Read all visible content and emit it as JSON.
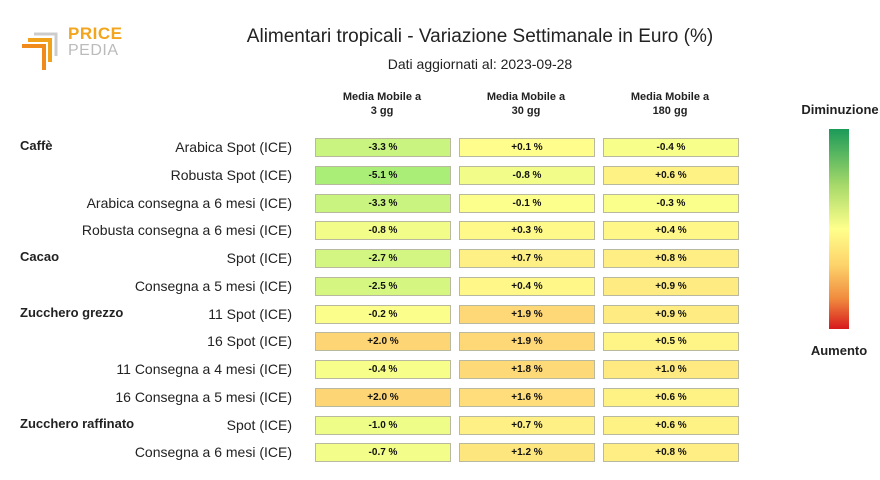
{
  "logo": {
    "price": "PRICE",
    "pedia": "PEDIA"
  },
  "chart_data": {
    "type": "table",
    "title": "Alimentari tropicali - Variazione Settimanale in Euro (%)",
    "subtitle": "Dati aggiornati al: 2023-09-28",
    "columns": [
      "Media Mobile a 3 gg",
      "Media Mobile a 30 gg",
      "Media Mobile a 180 gg"
    ],
    "column_lines": [
      [
        "Media Mobile a",
        "3 gg"
      ],
      [
        "Media Mobile a",
        "30 gg"
      ],
      [
        "Media Mobile a",
        "180 gg"
      ]
    ],
    "groups": [
      {
        "name": "Caffè",
        "rows": [
          {
            "label": "Arabica Spot (ICE)",
            "values": [
              -3.3,
              0.1,
              -0.4
            ],
            "display": [
              "-3.3 %",
              "+0.1 %",
              "-0.4 %"
            ]
          },
          {
            "label": "Robusta Spot (ICE)",
            "values": [
              -5.1,
              -0.8,
              0.6
            ],
            "display": [
              "-5.1 %",
              "-0.8 %",
              "+0.6 %"
            ]
          },
          {
            "label": "Arabica consegna a 6 mesi (ICE)",
            "values": [
              -3.3,
              -0.1,
              -0.3
            ],
            "display": [
              "-3.3 %",
              "-0.1 %",
              "-0.3 %"
            ]
          },
          {
            "label": "Robusta consegna a 6 mesi (ICE)",
            "values": [
              -0.8,
              0.3,
              0.4
            ],
            "display": [
              "-0.8 %",
              "+0.3 %",
              "+0.4 %"
            ]
          }
        ]
      },
      {
        "name": "Cacao",
        "rows": [
          {
            "label": "Spot (ICE)",
            "values": [
              -2.7,
              0.7,
              0.8
            ],
            "display": [
              "-2.7 %",
              "+0.7 %",
              "+0.8 %"
            ]
          },
          {
            "label": "Consegna a 5 mesi (ICE)",
            "values": [
              -2.5,
              0.4,
              0.9
            ],
            "display": [
              "-2.5 %",
              "+0.4 %",
              "+0.9 %"
            ]
          }
        ]
      },
      {
        "name": "Zucchero grezzo",
        "rows": [
          {
            "label": "11 Spot (ICE)",
            "values": [
              -0.2,
              1.9,
              0.9
            ],
            "display": [
              "-0.2 %",
              "+1.9 %",
              "+0.9 %"
            ]
          },
          {
            "label": "16 Spot (ICE)",
            "values": [
              2.0,
              1.9,
              0.5
            ],
            "display": [
              "+2.0 %",
              "+1.9 %",
              "+0.5 %"
            ]
          },
          {
            "label": "11 Consegna a 4 mesi (ICE)",
            "values": [
              -0.4,
              1.8,
              1.0
            ],
            "display": [
              "-0.4 %",
              "+1.8 %",
              "+1.0 %"
            ]
          },
          {
            "label": "16 Consegna a 5 mesi (ICE)",
            "values": [
              2.0,
              1.6,
              0.6
            ],
            "display": [
              "+2.0 %",
              "+1.6 %",
              "+0.6 %"
            ]
          }
        ]
      },
      {
        "name": "Zucchero raffinato",
        "rows": [
          {
            "label": "Spot (ICE)",
            "values": [
              -1.0,
              0.7,
              0.6
            ],
            "display": [
              "-1.0 %",
              "+0.7 %",
              "+0.6 %"
            ]
          },
          {
            "label": "Consegna a 6 mesi (ICE)",
            "values": [
              -0.7,
              1.2,
              0.8
            ],
            "display": [
              "-0.7 %",
              "+1.2 %",
              "+0.8 %"
            ]
          }
        ]
      }
    ],
    "legend": {
      "top": "Diminuzione",
      "bottom": "Aumento"
    },
    "color_scale": {
      "decrease": "#1b9a59",
      "neutral": "#ffff8c",
      "increase": "#d7191c"
    }
  }
}
